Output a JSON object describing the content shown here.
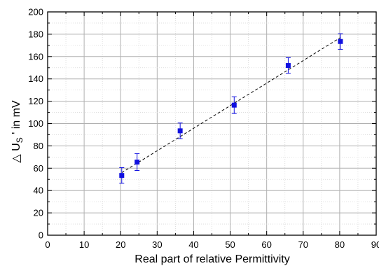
{
  "chart_data": {
    "type": "scatter",
    "xlabel": "Real part of relative Permittivity",
    "ylabel": {
      "prefix": "△ U",
      "subscript": "S",
      "suffix": " ' in mV"
    },
    "xlim": [
      0,
      90
    ],
    "ylim": [
      0,
      200
    ],
    "x_ticks": [
      0,
      10,
      20,
      30,
      40,
      50,
      60,
      70,
      80,
      90
    ],
    "y_ticks": [
      0,
      20,
      40,
      60,
      80,
      100,
      120,
      140,
      160,
      180,
      200
    ],
    "grid": true,
    "series": [
      {
        "marker": "square",
        "color": "#1010e0",
        "points": [
          {
            "x": 20.3,
            "y": 53.5,
            "err": 7
          },
          {
            "x": 24.5,
            "y": 65.5,
            "err": 7.5
          },
          {
            "x": 36.3,
            "y": 93.5,
            "err": 7
          },
          {
            "x": 51.1,
            "y": 116.5,
            "err": 7.5
          },
          {
            "x": 65.9,
            "y": 152,
            "err": 7
          },
          {
            "x": 80.2,
            "y": 173.5,
            "err": 7
          }
        ]
      }
    ],
    "fit_line": {
      "style": "dashed",
      "color": "#000000",
      "start": [
        20.3,
        56
      ],
      "end": [
        80.2,
        177
      ]
    }
  }
}
